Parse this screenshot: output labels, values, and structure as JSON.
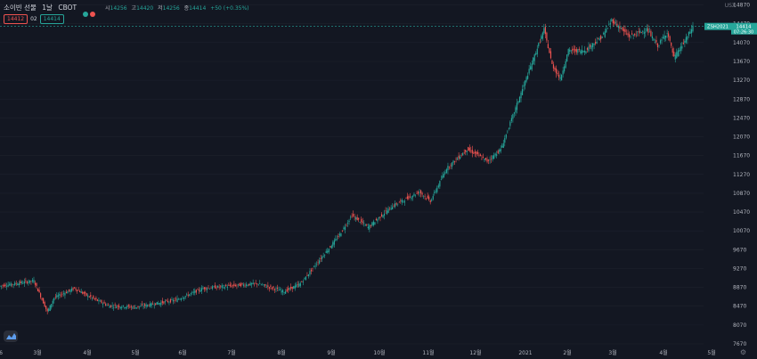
{
  "header": {
    "symbol": "소이빈 선물",
    "interval": "1날",
    "exchange": "CBOT",
    "ohlc": {
      "open_label": "시",
      "open": "14256",
      "high_label": "고",
      "high": "14420",
      "low_label": "저",
      "low": "14256",
      "close_label": "종",
      "close": "14414",
      "change": "+50 (+0.35%)"
    },
    "bid": "14412",
    "spread": "02",
    "ask": "14414"
  },
  "currency": "USX",
  "price_badge": {
    "symbol": "ZSH2021",
    "price": "14414",
    "countdown": "07:26:30"
  },
  "colors": {
    "up": "#26a69a",
    "down": "#ef5350",
    "bg": "#131722",
    "grid": "#1e222d",
    "text": "#b2b5be"
  },
  "chart_data": {
    "type": "candlestick",
    "title": "",
    "ylim": [
      7670,
      14900
    ],
    "y_ticks": [
      "14870",
      "14470",
      "14070",
      "13670",
      "13270",
      "12870",
      "12470",
      "12070",
      "11670",
      "11270",
      "10870",
      "10470",
      "10070",
      "9670",
      "9270",
      "8870",
      "8470",
      "8070",
      "7670"
    ],
    "x_ticks": [
      "6",
      "3월",
      "4월",
      "5월",
      "6월",
      "7월",
      "8월",
      "9월",
      "10월",
      "11월",
      "12월",
      "2021",
      "2월",
      "3월",
      "4월",
      "5월"
    ],
    "anchors": [
      {
        "i": 0,
        "p": 8900
      },
      {
        "i": 25,
        "p": 9010
      },
      {
        "i": 35,
        "p": 8350
      },
      {
        "i": 40,
        "p": 8650
      },
      {
        "i": 55,
        "p": 8850
      },
      {
        "i": 64,
        "p": 8700
      },
      {
        "i": 80,
        "p": 8480
      },
      {
        "i": 100,
        "p": 8450
      },
      {
        "i": 130,
        "p": 8600
      },
      {
        "i": 150,
        "p": 8850
      },
      {
        "i": 170,
        "p": 8900
      },
      {
        "i": 190,
        "p": 8950
      },
      {
        "i": 210,
        "p": 8780
      },
      {
        "i": 222,
        "p": 8950
      },
      {
        "i": 250,
        "p": 9950
      },
      {
        "i": 260,
        "p": 10400
      },
      {
        "i": 272,
        "p": 10150
      },
      {
        "i": 290,
        "p": 10600
      },
      {
        "i": 310,
        "p": 10900
      },
      {
        "i": 318,
        "p": 10700
      },
      {
        "i": 330,
        "p": 11400
      },
      {
        "i": 345,
        "p": 11800
      },
      {
        "i": 352,
        "p": 11700
      },
      {
        "i": 360,
        "p": 11550
      },
      {
        "i": 370,
        "p": 11800
      },
      {
        "i": 380,
        "p": 12600
      },
      {
        "i": 390,
        "p": 13400
      },
      {
        "i": 402,
        "p": 14350
      },
      {
        "i": 408,
        "p": 13600
      },
      {
        "i": 414,
        "p": 13300
      },
      {
        "i": 420,
        "p": 13900
      },
      {
        "i": 432,
        "p": 13900
      },
      {
        "i": 445,
        "p": 14200
      },
      {
        "i": 452,
        "p": 14550
      },
      {
        "i": 465,
        "p": 14200
      },
      {
        "i": 478,
        "p": 14350
      },
      {
        "i": 486,
        "p": 14000
      },
      {
        "i": 493,
        "p": 14300
      },
      {
        "i": 498,
        "p": 13750
      },
      {
        "i": 505,
        "p": 14050
      },
      {
        "i": 512,
        "p": 14414
      }
    ]
  }
}
